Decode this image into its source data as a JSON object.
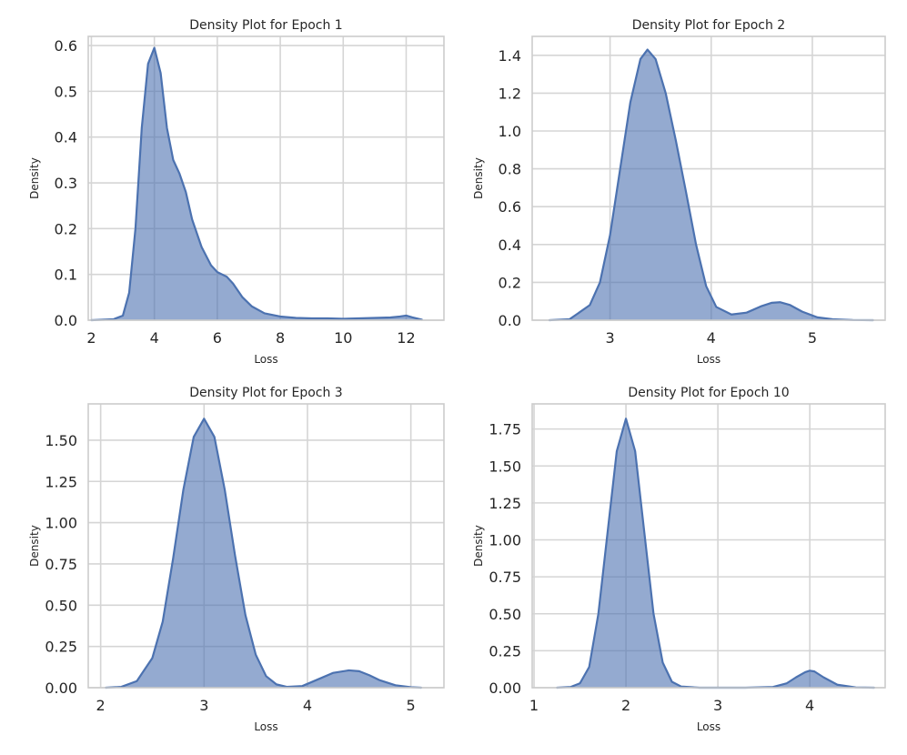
{
  "style": {
    "line_color": "#4c72b0",
    "fill_color": "#4c72b0",
    "fill_opacity": 0.6,
    "grid_color": "#d5d5d5",
    "frame_color": "#cccccc"
  },
  "chart_data": [
    {
      "type": "area",
      "title": "Density Plot for Epoch 1",
      "xlabel": "Loss",
      "ylabel": "Density",
      "grid": true,
      "xlim": [
        1.9,
        13.2
      ],
      "ylim": [
        0,
        0.62
      ],
      "xticks": [
        2,
        4,
        6,
        8,
        10,
        12
      ],
      "xtick_labels": [
        "2",
        "4",
        "6",
        "8",
        "10",
        "12"
      ],
      "yticks": [
        0,
        0.1,
        0.2,
        0.3,
        0.4,
        0.5,
        0.6
      ],
      "ytick_labels": [
        "0.0",
        "0.1",
        "0.2",
        "0.3",
        "0.4",
        "0.5",
        "0.6"
      ],
      "x": [
        2.0,
        2.7,
        3.0,
        3.2,
        3.4,
        3.6,
        3.8,
        4.0,
        4.2,
        4.4,
        4.6,
        4.8,
        5.0,
        5.2,
        5.5,
        5.8,
        6.0,
        6.3,
        6.5,
        6.8,
        7.1,
        7.5,
        8.0,
        8.5,
        9.0,
        9.5,
        10.0,
        10.5,
        11.0,
        11.5,
        11.8,
        12.0,
        12.2,
        12.5
      ],
      "y": [
        0.0,
        0.002,
        0.01,
        0.06,
        0.2,
        0.42,
        0.56,
        0.595,
        0.54,
        0.42,
        0.35,
        0.32,
        0.28,
        0.22,
        0.16,
        0.12,
        0.105,
        0.095,
        0.08,
        0.05,
        0.03,
        0.015,
        0.008,
        0.005,
        0.004,
        0.004,
        0.003,
        0.004,
        0.005,
        0.006,
        0.008,
        0.01,
        0.006,
        0.001
      ]
    },
    {
      "type": "area",
      "title": "Density Plot for Epoch 2",
      "xlabel": "Loss",
      "ylabel": "Density",
      "grid": true,
      "xlim": [
        2.23,
        5.72
      ],
      "ylim": [
        0,
        1.5
      ],
      "xticks": [
        3,
        4,
        5
      ],
      "xtick_labels": [
        "3",
        "4",
        "5"
      ],
      "yticks": [
        0,
        0.2,
        0.4,
        0.6,
        0.8,
        1.0,
        1.2,
        1.4
      ],
      "ytick_labels": [
        "0.0",
        "0.2",
        "0.4",
        "0.6",
        "0.8",
        "1.0",
        "1.2",
        "1.4"
      ],
      "x": [
        2.4,
        2.6,
        2.8,
        2.9,
        3.0,
        3.1,
        3.2,
        3.3,
        3.37,
        3.45,
        3.55,
        3.65,
        3.75,
        3.85,
        3.95,
        4.05,
        4.2,
        4.35,
        4.5,
        4.6,
        4.68,
        4.78,
        4.9,
        5.05,
        5.2,
        5.4,
        5.6
      ],
      "y": [
        0.0,
        0.005,
        0.08,
        0.2,
        0.45,
        0.8,
        1.15,
        1.38,
        1.43,
        1.38,
        1.2,
        0.95,
        0.68,
        0.4,
        0.18,
        0.07,
        0.03,
        0.04,
        0.075,
        0.092,
        0.095,
        0.08,
        0.045,
        0.015,
        0.005,
        0.001,
        0.0
      ]
    },
    {
      "type": "area",
      "title": "Density Plot for Epoch 3",
      "xlabel": "Loss",
      "ylabel": "Density",
      "grid": true,
      "xlim": [
        1.88,
        5.32
      ],
      "ylim": [
        0,
        1.72
      ],
      "xticks": [
        2,
        3,
        4,
        5
      ],
      "xtick_labels": [
        "2",
        "3",
        "4",
        "5"
      ],
      "yticks": [
        0,
        0.25,
        0.5,
        0.75,
        1.0,
        1.25,
        1.5
      ],
      "ytick_labels": [
        "0.00",
        "0.25",
        "0.50",
        "0.75",
        "1.00",
        "1.25",
        "1.50"
      ],
      "x": [
        2.05,
        2.2,
        2.35,
        2.5,
        2.6,
        2.7,
        2.8,
        2.9,
        3.0,
        3.1,
        3.2,
        3.3,
        3.4,
        3.5,
        3.6,
        3.7,
        3.8,
        3.95,
        4.1,
        4.25,
        4.4,
        4.5,
        4.6,
        4.7,
        4.85,
        5.0,
        5.1
      ],
      "y": [
        0.0,
        0.005,
        0.04,
        0.18,
        0.4,
        0.78,
        1.2,
        1.52,
        1.63,
        1.52,
        1.2,
        0.8,
        0.44,
        0.2,
        0.07,
        0.02,
        0.005,
        0.01,
        0.05,
        0.09,
        0.105,
        0.1,
        0.075,
        0.045,
        0.015,
        0.003,
        0.0
      ]
    },
    {
      "type": "area",
      "title": "Density Plot for Epoch 10",
      "xlabel": "Loss",
      "ylabel": "Density",
      "grid": true,
      "xlim": [
        0.98,
        4.82
      ],
      "ylim": [
        0,
        1.92
      ],
      "xticks": [
        1,
        2,
        3,
        4
      ],
      "xtick_labels": [
        "1",
        "2",
        "3",
        "4"
      ],
      "yticks": [
        0,
        0.25,
        0.5,
        0.75,
        1.0,
        1.25,
        1.5,
        1.75
      ],
      "ytick_labels": [
        "0.00",
        "0.25",
        "0.50",
        "0.75",
        "1.00",
        "1.25",
        "1.50",
        "1.75"
      ],
      "x": [
        1.25,
        1.4,
        1.5,
        1.6,
        1.7,
        1.8,
        1.9,
        2.0,
        2.1,
        2.2,
        2.3,
        2.4,
        2.5,
        2.6,
        2.8,
        3.0,
        3.3,
        3.6,
        3.75,
        3.85,
        3.95,
        4.0,
        4.05,
        4.15,
        4.3,
        4.5,
        4.7
      ],
      "y": [
        0.0,
        0.005,
        0.03,
        0.14,
        0.5,
        1.05,
        1.6,
        1.82,
        1.6,
        1.05,
        0.5,
        0.17,
        0.04,
        0.008,
        0.0,
        0.0,
        0.0,
        0.005,
        0.03,
        0.07,
        0.105,
        0.115,
        0.11,
        0.07,
        0.02,
        0.002,
        0.0
      ]
    }
  ]
}
